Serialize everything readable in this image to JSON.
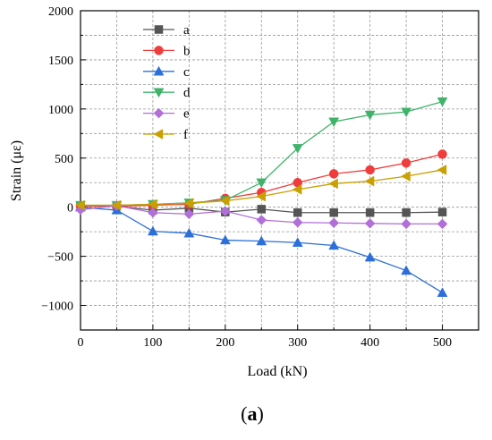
{
  "chart_data": {
    "type": "line",
    "xlabel": "Load (kN)",
    "ylabel": "Strain (με)",
    "xlim": [
      0,
      550
    ],
    "ylim": [
      -1250,
      2000
    ],
    "x_ticks": [
      0,
      100,
      200,
      300,
      400,
      500
    ],
    "y_ticks": [
      -1000,
      -500,
      0,
      500,
      1000,
      1500,
      2000
    ],
    "grid": true,
    "legend_position": "top-left",
    "x": [
      0,
      50,
      100,
      150,
      200,
      250,
      300,
      350,
      400,
      450,
      500
    ],
    "series": [
      {
        "name": "a",
        "color": "#555555",
        "marker": "square",
        "values": [
          15,
          10,
          -30,
          -10,
          -50,
          -20,
          -55,
          -55,
          -55,
          -55,
          -50
        ],
        "x": [
          0,
          50,
          100,
          150,
          200,
          250,
          300,
          350,
          400,
          450,
          500
        ]
      },
      {
        "name": "b",
        "color": "#f03c3c",
        "marker": "circle",
        "values": [
          10,
          10,
          20,
          30,
          90,
          150,
          250,
          340,
          380,
          450,
          540
        ],
        "x": [
          0,
          50,
          100,
          150,
          200,
          250,
          300,
          350,
          400,
          450,
          500
        ]
      },
      {
        "name": "c",
        "color": "#2c6fd9",
        "marker": "triangle-up",
        "values": [
          0,
          -30,
          -245,
          -265,
          -335,
          -345,
          -360,
          -390,
          -510,
          -645,
          -870
        ],
        "x": [
          0,
          50,
          100,
          150,
          200,
          250,
          300,
          350,
          400,
          450,
          500
        ]
      },
      {
        "name": "d",
        "color": "#3fb36a",
        "marker": "triangle-down",
        "values": [
          20,
          20,
          30,
          45,
          70,
          250,
          600,
          870,
          940,
          970,
          1075
        ],
        "x": [
          0,
          50,
          100,
          150,
          200,
          250,
          300,
          350,
          400,
          450,
          500
        ]
      },
      {
        "name": "e",
        "color": "#b070d8",
        "marker": "diamond",
        "values": [
          -25,
          15,
          -55,
          -70,
          -40,
          -130,
          -155,
          -160,
          -165,
          -170,
          -170
        ],
        "x": [
          0,
          50,
          100,
          150,
          200,
          250,
          300,
          350,
          400,
          450,
          500
        ]
      },
      {
        "name": "f",
        "color": "#c9a000",
        "marker": "triangle-left",
        "values": [
          20,
          20,
          30,
          40,
          65,
          110,
          180,
          240,
          265,
          315,
          380
        ],
        "x": [
          0,
          50,
          100,
          150,
          200,
          250,
          300,
          350,
          400,
          450,
          500
        ]
      }
    ],
    "caption": {
      "open": "(",
      "letter": "a",
      "close": ")"
    }
  }
}
